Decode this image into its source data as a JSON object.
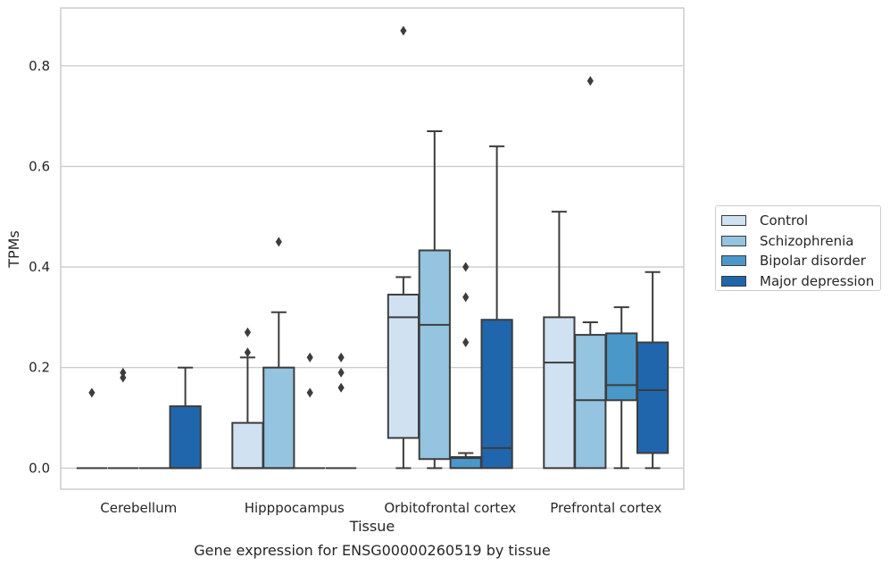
{
  "chart_data": {
    "type": "box",
    "caption": "Gene expression for ENSG00000260519 by tissue",
    "xlabel": "Tissue",
    "ylabel": "TPMs",
    "ylim": [
      -0.042,
      0.915
    ],
    "yticks": [
      0.0,
      0.2,
      0.4,
      0.6,
      0.8
    ],
    "ytick_labels": [
      "0.0",
      "0.2",
      "0.4",
      "0.6",
      "0.8"
    ],
    "grid": "horizontal",
    "legend_position": "right",
    "categories": [
      "Cerebellum",
      "Hipppocampus",
      "Orbitofrontal cortex",
      "Prefrontal cortex"
    ],
    "series": [
      {
        "name": "Control",
        "color": "#d0e1f2",
        "boxes": [
          {
            "min": 0,
            "q1": 0,
            "median": 0,
            "q3": 0,
            "max": 0,
            "outliers": [
              0.15
            ]
          },
          {
            "min": 0,
            "q1": 0,
            "median": 0,
            "q3": 0.09,
            "max": 0.22,
            "outliers": [
              0.23,
              0.27
            ]
          },
          {
            "min": 0,
            "q1": 0.06,
            "median": 0.3,
            "q3": 0.345,
            "max": 0.38,
            "outliers": [
              0.87
            ]
          },
          {
            "min": 0,
            "q1": 0,
            "median": 0.21,
            "q3": 0.3,
            "max": 0.51,
            "outliers": []
          }
        ]
      },
      {
        "name": "Schizophrenia",
        "color": "#94c4df",
        "boxes": [
          {
            "min": 0,
            "q1": 0,
            "median": 0,
            "q3": 0,
            "max": 0,
            "outliers": [
              0.18,
              0.19
            ]
          },
          {
            "min": 0,
            "q1": 0,
            "median": 0,
            "q3": 0.2,
            "max": 0.31,
            "outliers": [
              0.45
            ]
          },
          {
            "min": 0,
            "q1": 0.018,
            "median": 0.285,
            "q3": 0.433,
            "max": 0.67,
            "outliers": []
          },
          {
            "min": 0,
            "q1": 0,
            "median": 0.135,
            "q3": 0.265,
            "max": 0.29,
            "outliers": [
              0.77
            ]
          }
        ]
      },
      {
        "name": "Bipolar disorder",
        "color": "#4a98c9",
        "boxes": [
          {
            "min": 0,
            "q1": 0,
            "median": 0,
            "q3": 0,
            "max": 0,
            "outliers": []
          },
          {
            "min": 0,
            "q1": 0,
            "median": 0,
            "q3": 0,
            "max": 0,
            "outliers": [
              0.15,
              0.22
            ]
          },
          {
            "min": 0,
            "q1": 0,
            "median": 0.02,
            "q3": 0.022,
            "max": 0.03,
            "outliers": [
              0.25,
              0.34,
              0.4
            ]
          },
          {
            "min": 0,
            "q1": 0.135,
            "median": 0.165,
            "q3": 0.268,
            "max": 0.32,
            "outliers": []
          }
        ]
      },
      {
        "name": "Major depression",
        "color": "#2066ac",
        "boxes": [
          {
            "min": 0,
            "q1": 0,
            "median": 0,
            "q3": 0.123,
            "max": 0.2,
            "outliers": []
          },
          {
            "min": 0,
            "q1": 0,
            "median": 0,
            "q3": 0,
            "max": 0,
            "outliers": [
              0.16,
              0.19,
              0.22
            ]
          },
          {
            "min": 0,
            "q1": 0,
            "median": 0.04,
            "q3": 0.295,
            "max": 0.64,
            "outliers": []
          },
          {
            "min": 0,
            "q1": 0.03,
            "median": 0.155,
            "q3": 0.25,
            "max": 0.39,
            "outliers": []
          }
        ]
      }
    ]
  }
}
